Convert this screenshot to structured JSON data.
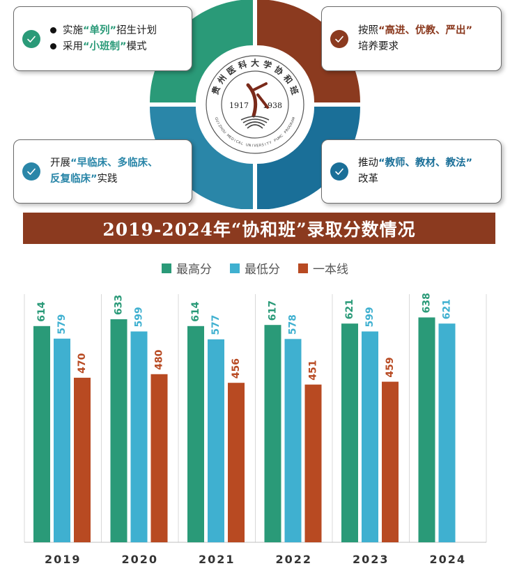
{
  "cards": [
    {
      "id": "single-list",
      "lines": [
        [
          {
            "t": "实施",
            "h": false
          },
          {
            "t": "“单列”",
            "h": true
          },
          {
            "t": "招生计划",
            "h": false
          }
        ],
        [
          {
            "t": "采用",
            "h": false
          },
          {
            "t": "“小班制”",
            "h": true
          },
          {
            "t": "模式",
            "h": false
          }
        ]
      ]
    },
    {
      "id": "high-standard",
      "lines": [
        [
          {
            "t": "按照",
            "h": false
          },
          {
            "t": "“高进、优教、严出”",
            "h": true
          }
        ],
        [
          {
            "t": "培养要求",
            "h": false
          }
        ]
      ]
    },
    {
      "id": "clinical-practice",
      "lines": [
        [
          {
            "t": "开展",
            "h": false
          },
          {
            "t": "“早临床、多临床、",
            "h": true
          }
        ],
        [
          {
            "t": "反复临床”",
            "h": true
          },
          {
            "t": "实践",
            "h": false
          }
        ]
      ]
    },
    {
      "id": "teaching-reform",
      "lines": [
        [
          {
            "t": "推动",
            "h": false
          },
          {
            "t": "“教师、教材、教法”",
            "h": true
          }
        ],
        [
          {
            "t": "改革",
            "h": false
          }
        ]
      ]
    }
  ],
  "logo": {
    "arc_text": "贵州医科大学协和班",
    "year_left": "1917",
    "year_right": "1938",
    "bottom_text": "GUIZHOU MEDICAL UNIVERSITY PUMC PROGRAM"
  },
  "colors": {
    "green": "#2a9a78",
    "brown": "#8b3a1f",
    "blue_light": "#2a86a8",
    "blue_dark": "#1a6f98",
    "series_high": "#2a9a78",
    "series_low": "#3fb0d0",
    "series_line": "#b84a22"
  },
  "chart_data": {
    "type": "bar",
    "title": "2019-2024年“协和班”录取分数情况",
    "categories": [
      "2019",
      "2020",
      "2021",
      "2022",
      "2023",
      "2024"
    ],
    "series": [
      {
        "name": "最高分",
        "values": [
          614,
          633,
          614,
          617,
          621,
          638
        ]
      },
      {
        "name": "最低分",
        "values": [
          579,
          599,
          577,
          578,
          599,
          621
        ]
      },
      {
        "name": "一本线",
        "values": [
          470,
          480,
          456,
          451,
          459,
          null
        ]
      }
    ],
    "ylim": [
      0,
      680
    ],
    "legend": "top-center",
    "grid": "vertical-separators"
  }
}
